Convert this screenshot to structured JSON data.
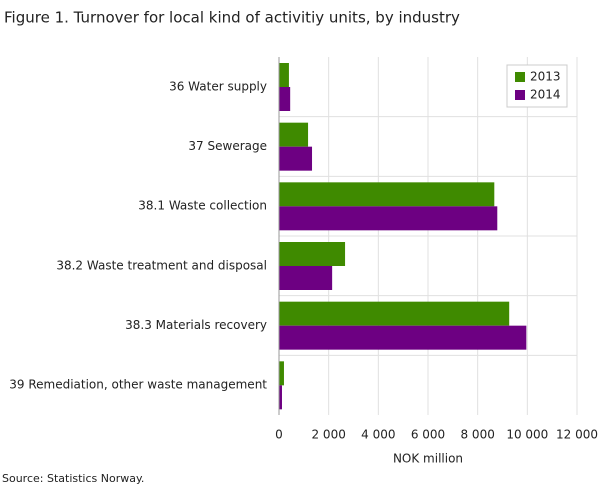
{
  "chart_data": {
    "type": "hbar",
    "title": "Figure 1. Turnover for local kind of activitiy units, by industry",
    "source": "Source: Statistics Norway.",
    "x_label": "NOK million",
    "categories": [
      "36 Water supply",
      "37 Sewerage",
      "38.1 Waste collection",
      "38.2 Waste treatment and disposal",
      "38.3 Materials recovery",
      "39 Remediation, other waste management"
    ],
    "series": [
      {
        "name": "2013",
        "color": "#3f8a00",
        "values": [
          400,
          1170,
          8670,
          2660,
          9270,
          200
        ]
      },
      {
        "name": "2014",
        "color": "#6d0082",
        "values": [
          450,
          1330,
          8790,
          2140,
          9960,
          120
        ]
      }
    ],
    "xlim": [
      0,
      12000
    ],
    "xticks": [
      0,
      {
        "value": 2000,
        "label": "2 000"
      },
      {
        "value": 4000,
        "label": "4 000"
      },
      {
        "value": 6000,
        "label": "6 000"
      },
      {
        "value": 8000,
        "label": "8 000"
      },
      {
        "value": 10000,
        "label": "10 000"
      },
      {
        "value": 12000,
        "label": "12 000"
      }
    ],
    "grid": true,
    "legend": "top-right"
  }
}
